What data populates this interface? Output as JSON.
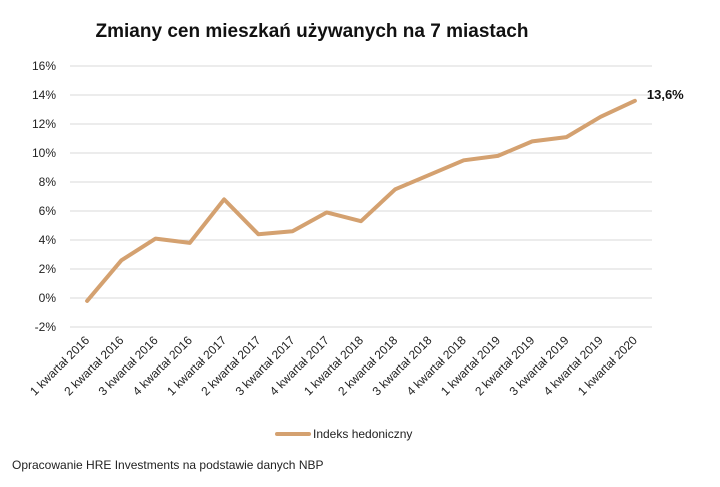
{
  "chart_data": {
    "type": "line",
    "title": "Zmiany cen mieszkań używanych na 7 miastach",
    "categories": [
      "1 kwartał 2016",
      "2 kwartał 2016",
      "3 kwartał 2016",
      "4 kwartał 2016",
      "1 kwartał 2017",
      "2 kwartał 2017",
      "3 kwartał 2017",
      "4 kwartał 2017",
      "1 kwartał 2018",
      "2 kwartał 2018",
      "3 kwartał 2018",
      "4 kwartał 2018",
      "1 kwartał 2019",
      "2 kwartał 2019",
      "3 kwartał 2019",
      "4 kwartał 2019",
      "1 kwartał 2020"
    ],
    "series": [
      {
        "name": "Indeks hedoniczny",
        "values": [
          -0.2,
          2.6,
          4.1,
          3.8,
          6.8,
          4.4,
          4.6,
          5.9,
          5.3,
          7.5,
          8.5,
          9.5,
          9.8,
          10.8,
          11.1,
          12.5,
          13.6
        ],
        "color": "#d4a170"
      }
    ],
    "end_label": "13,6%",
    "ylim": [
      -2,
      16
    ],
    "yticks": [
      "-2%",
      "0%",
      "2%",
      "4%",
      "6%",
      "8%",
      "10%",
      "12%",
      "14%",
      "16%"
    ],
    "grid": true,
    "legend_position": "bottom"
  },
  "source_note": "Opracowanie HRE Investments na podstawie danych NBP"
}
